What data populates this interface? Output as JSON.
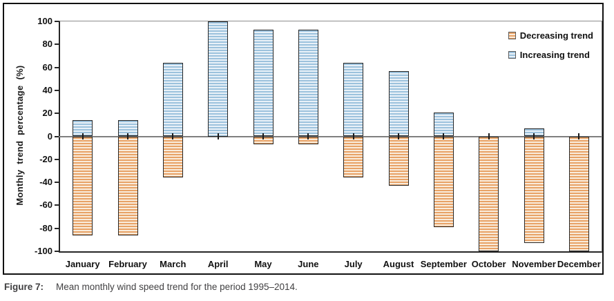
{
  "figure": {
    "caption_label": "Figure 7:",
    "caption_text": "Mean monthly wind speed trend for the period 1995–2014."
  },
  "chart_data": {
    "type": "bar",
    "title": "",
    "xlabel": "",
    "ylabel": "Monthly trend percentage (%)",
    "ylim": [
      -100,
      100
    ],
    "yticks": [
      100,
      80,
      60,
      40,
      20,
      0,
      -20,
      -40,
      -60,
      -80,
      -100
    ],
    "grid": "zero-line-only",
    "legend_position": "top-right",
    "error_bar_pct": 3,
    "categories": [
      "January",
      "February",
      "March",
      "April",
      "May",
      "June",
      "July",
      "August",
      "September",
      "October",
      "November",
      "December"
    ],
    "series": [
      {
        "name": "Decreasing trend",
        "direction": "negative",
        "stripe_dark": "#E8A266",
        "stripe_light": "#F9ECDC",
        "values": [
          -86,
          -86,
          -36,
          0,
          -7,
          -7,
          -36,
          -43,
          -79,
          -100,
          -93,
          -100
        ]
      },
      {
        "name": "Increasing trend",
        "direction": "positive",
        "stripe_dark": "#9CC2DD",
        "stripe_light": "#E9F1F8",
        "values": [
          14,
          14,
          64,
          100,
          93,
          93,
          64,
          57,
          21,
          0,
          7,
          0
        ]
      }
    ],
    "colors": {
      "bar_border": "#262626",
      "zero_line": "#7F7F7F",
      "axis": "#262626",
      "caption_text": "#414042"
    }
  }
}
